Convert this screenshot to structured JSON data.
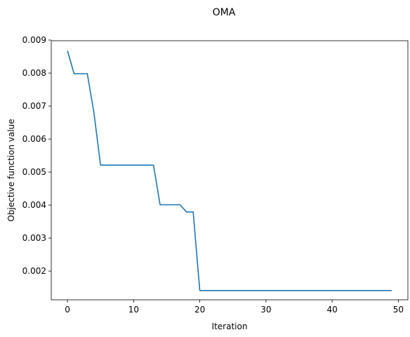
{
  "chart_data": {
    "type": "line",
    "title": "OMA",
    "xlabel": "Iteration",
    "ylabel": "Objective function value",
    "xlim": [
      -2.45,
      51.45
    ],
    "ylim": [
      0.00113,
      0.00898
    ],
    "x_ticks": [
      0,
      10,
      20,
      30,
      40,
      50
    ],
    "y_ticks": [
      0.002,
      0.003,
      0.004,
      0.005,
      0.006,
      0.007,
      0.008,
      0.009
    ],
    "x_tick_labels": [
      "0",
      "10",
      "20",
      "30",
      "40",
      "50"
    ],
    "y_tick_labels": [
      "0.002",
      "0.003",
      "0.004",
      "0.005",
      "0.006",
      "0.007",
      "0.008",
      "0.009"
    ],
    "grid": false,
    "line_color": "#1f77b4",
    "series": [
      {
        "x": [
          0,
          1,
          2,
          3,
          4,
          5,
          6,
          7,
          8,
          9,
          10,
          11,
          12,
          13,
          14,
          15,
          16,
          17,
          18,
          19,
          20,
          21,
          22,
          23,
          24,
          25,
          26,
          27,
          28,
          29,
          30,
          31,
          32,
          33,
          34,
          35,
          36,
          37,
          38,
          39,
          40,
          41,
          42,
          43,
          44,
          45,
          46,
          47,
          48,
          49
        ],
        "values": [
          0.00868,
          0.00798,
          0.00798,
          0.00798,
          0.0068,
          0.00521,
          0.00521,
          0.00521,
          0.00521,
          0.00521,
          0.00521,
          0.00521,
          0.00521,
          0.00521,
          0.00401,
          0.00401,
          0.00401,
          0.00401,
          0.00379,
          0.00379,
          0.00141,
          0.00141,
          0.00141,
          0.00141,
          0.00141,
          0.00141,
          0.00141,
          0.00141,
          0.00141,
          0.00141,
          0.00141,
          0.00141,
          0.00141,
          0.00141,
          0.00141,
          0.00141,
          0.00141,
          0.00141,
          0.00141,
          0.00141,
          0.00141,
          0.00141,
          0.00141,
          0.00141,
          0.00141,
          0.00141,
          0.00141,
          0.00141,
          0.00141,
          0.00141
        ]
      }
    ]
  }
}
